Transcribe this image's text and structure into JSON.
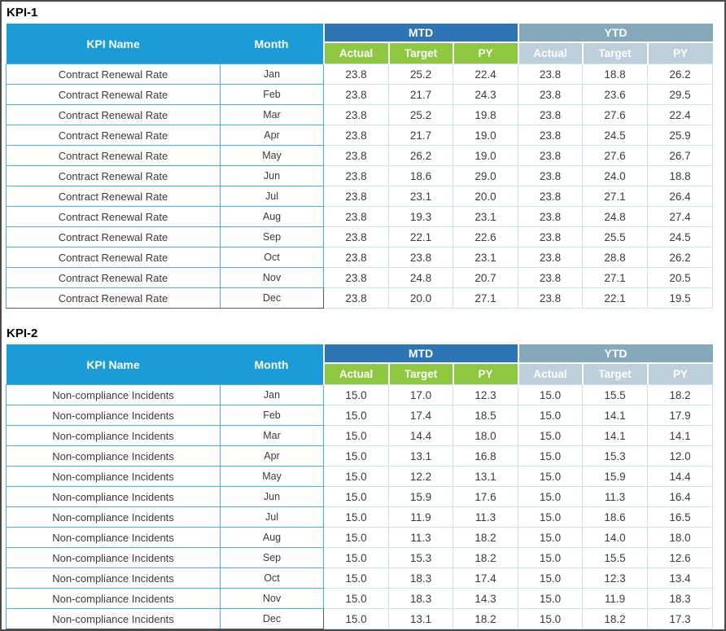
{
  "colors": {
    "header_cyan": "#1b9cd6",
    "mtd_blue": "#2e75b6",
    "mtd_subheader_green": "#8ec841",
    "ytd_gray_blue": "#85a8ba",
    "ytd_subheader_light": "#bccfda",
    "grid_border_cyan": "#45b4dc",
    "grid_border_light": "#c8e4f2",
    "outer_border": "#4a4a4a"
  },
  "tables": [
    {
      "title": "KPI-1",
      "kpi_name": "Contract Renewal Rate",
      "headers": {
        "kpi_name": "KPI Name",
        "month": "Month",
        "mtd": "MTD",
        "ytd": "YTD",
        "sub": [
          "Actual",
          "Target",
          "PY"
        ]
      },
      "rows": [
        {
          "month": "Jan",
          "values": [
            "23.8",
            "25.2",
            "22.4",
            "23.8",
            "18.8",
            "26.2"
          ]
        },
        {
          "month": "Feb",
          "values": [
            "23.8",
            "21.7",
            "24.3",
            "23.8",
            "23.6",
            "29.5"
          ]
        },
        {
          "month": "Mar",
          "values": [
            "23.8",
            "25.2",
            "19.8",
            "23.8",
            "27.6",
            "22.4"
          ]
        },
        {
          "month": "Apr",
          "values": [
            "23.8",
            "21.7",
            "19.0",
            "23.8",
            "24.5",
            "25.9"
          ]
        },
        {
          "month": "May",
          "values": [
            "23.8",
            "26.2",
            "19.0",
            "23.8",
            "27.6",
            "26.7"
          ]
        },
        {
          "month": "Jun",
          "values": [
            "23.8",
            "18.6",
            "29.0",
            "23.8",
            "24.0",
            "18.8"
          ]
        },
        {
          "month": "Jul",
          "values": [
            "23.8",
            "23.1",
            "20.0",
            "23.8",
            "27.1",
            "26.4"
          ]
        },
        {
          "month": "Aug",
          "values": [
            "23.8",
            "19.3",
            "23.1",
            "23.8",
            "24.8",
            "27.4"
          ]
        },
        {
          "month": "Sep",
          "values": [
            "23.8",
            "22.1",
            "22.6",
            "23.8",
            "25.5",
            "24.5"
          ]
        },
        {
          "month": "Oct",
          "values": [
            "23.8",
            "23.8",
            "23.1",
            "23.8",
            "28.8",
            "26.2"
          ]
        },
        {
          "month": "Nov",
          "values": [
            "23.8",
            "24.8",
            "20.7",
            "23.8",
            "27.1",
            "20.5"
          ]
        },
        {
          "month": "Dec",
          "values": [
            "23.8",
            "20.0",
            "27.1",
            "23.8",
            "22.1",
            "19.5"
          ]
        }
      ]
    },
    {
      "title": "KPI-2",
      "kpi_name": "Non-compliance Incidents",
      "headers": {
        "kpi_name": "KPI Name",
        "month": "Month",
        "mtd": "MTD",
        "ytd": "YTD",
        "sub": [
          "Actual",
          "Target",
          "PY"
        ]
      },
      "rows": [
        {
          "month": "Jan",
          "values": [
            "15.0",
            "17.0",
            "12.3",
            "15.0",
            "15.5",
            "18.2"
          ]
        },
        {
          "month": "Feb",
          "values": [
            "15.0",
            "17.4",
            "18.5",
            "15.0",
            "14.1",
            "17.9"
          ]
        },
        {
          "month": "Mar",
          "values": [
            "15.0",
            "14.4",
            "18.0",
            "15.0",
            "14.1",
            "14.1"
          ]
        },
        {
          "month": "Apr",
          "values": [
            "15.0",
            "13.1",
            "16.8",
            "15.0",
            "15.3",
            "12.0"
          ]
        },
        {
          "month": "May",
          "values": [
            "15.0",
            "12.2",
            "13.1",
            "15.0",
            "15.9",
            "14.4"
          ]
        },
        {
          "month": "Jun",
          "values": [
            "15.0",
            "15.9",
            "17.6",
            "15.0",
            "11.3",
            "16.4"
          ]
        },
        {
          "month": "Jul",
          "values": [
            "15.0",
            "11.9",
            "11.3",
            "15.0",
            "18.6",
            "16.5"
          ]
        },
        {
          "month": "Aug",
          "values": [
            "15.0",
            "11.3",
            "18.2",
            "15.0",
            "14.0",
            "18.0"
          ]
        },
        {
          "month": "Sep",
          "values": [
            "15.0",
            "15.3",
            "18.2",
            "15.0",
            "15.5",
            "12.6"
          ]
        },
        {
          "month": "Oct",
          "values": [
            "15.0",
            "18.3",
            "17.4",
            "15.0",
            "12.3",
            "13.4"
          ]
        },
        {
          "month": "Nov",
          "values": [
            "15.0",
            "18.3",
            "14.3",
            "15.0",
            "11.9",
            "18.3"
          ]
        },
        {
          "month": "Dec",
          "values": [
            "15.0",
            "13.1",
            "18.2",
            "15.0",
            "18.2",
            "17.3"
          ]
        }
      ]
    }
  ]
}
